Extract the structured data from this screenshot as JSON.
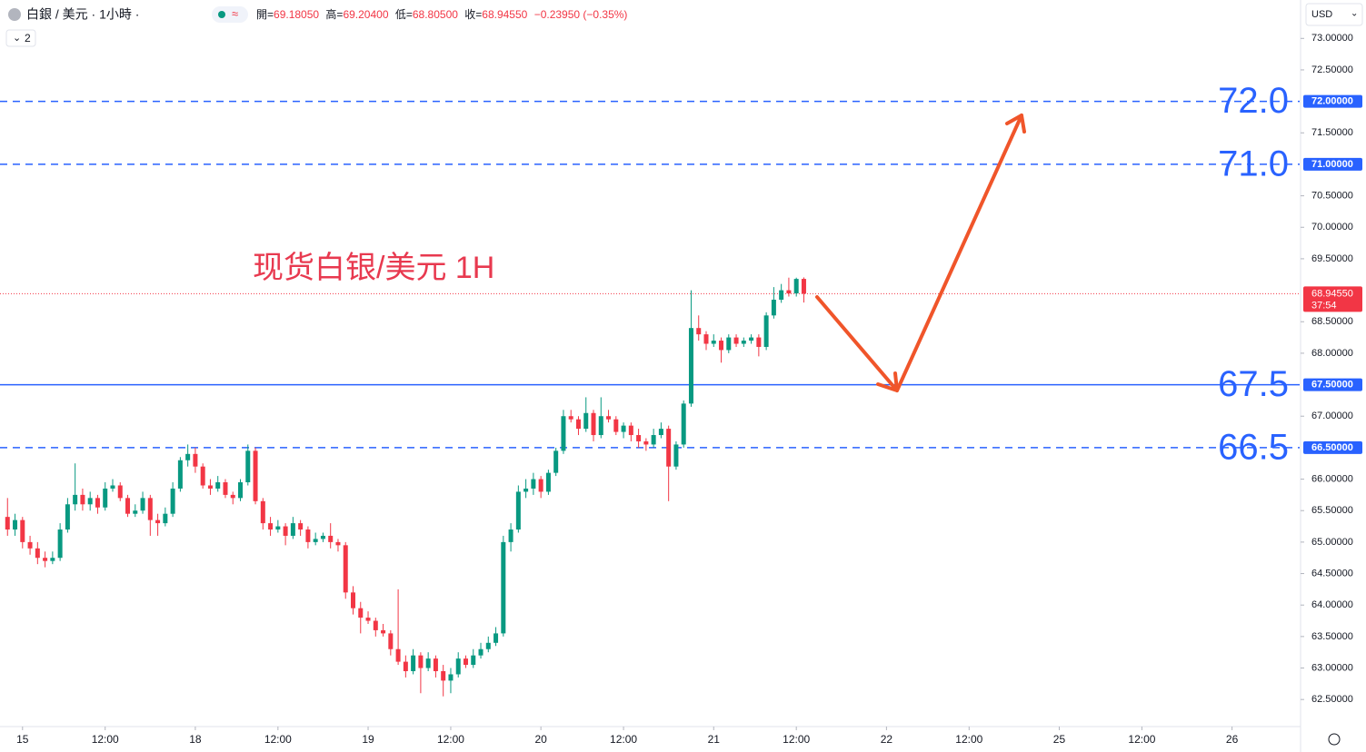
{
  "header": {
    "symbol": "白銀 / 美元 · 1小時 ·",
    "stats": [
      {
        "label": "開=",
        "value": "69.18050"
      },
      {
        "label": "高=",
        "value": "69.20400"
      },
      {
        "label": "低=",
        "value": "68.80500"
      },
      {
        "label": "收=",
        "value": "68.94550"
      }
    ],
    "change": "−0.23950 (−0.35%)",
    "indicators": "2",
    "currency": "USD"
  },
  "chart_data": {
    "type": "candlestick",
    "annotation": "现货白银/美元 1H",
    "up_color": "#089981",
    "down_color": "#f23645",
    "x": [
      -2,
      -1,
      0,
      1,
      2,
      3,
      4,
      5,
      6,
      7,
      8,
      9,
      10,
      11,
      12,
      13,
      14,
      15,
      16,
      17,
      18,
      19,
      20,
      21,
      22,
      23,
      24,
      25,
      26,
      27,
      28,
      29,
      30,
      31,
      32,
      33,
      34,
      35,
      36,
      37,
      38,
      39,
      40,
      41,
      42,
      43,
      44,
      45,
      46,
      47,
      48,
      49,
      50,
      51,
      52,
      53,
      54,
      55,
      56,
      57,
      58,
      59,
      60,
      61,
      62,
      63,
      64,
      65,
      66,
      67,
      68,
      69,
      70,
      71,
      72,
      73,
      74,
      75,
      76,
      77,
      78,
      79,
      80,
      81,
      82,
      83,
      84,
      85,
      86,
      87,
      88,
      89,
      90,
      91,
      92,
      93,
      94,
      95,
      96,
      97,
      98,
      99,
      100,
      101,
      102,
      103,
      104
    ],
    "ohlc": [
      [
        65.4,
        65.7,
        65.1,
        65.2
      ],
      [
        65.2,
        65.45,
        65.1,
        65.35
      ],
      [
        65.35,
        65.4,
        64.9,
        65.0
      ],
      [
        65.0,
        65.1,
        64.8,
        64.9
      ],
      [
        64.9,
        65.0,
        64.65,
        64.75
      ],
      [
        64.75,
        64.85,
        64.6,
        64.7
      ],
      [
        64.7,
        64.85,
        64.65,
        64.75
      ],
      [
        64.75,
        65.3,
        64.7,
        65.2
      ],
      [
        65.2,
        65.7,
        65.15,
        65.6
      ],
      [
        65.6,
        66.25,
        65.5,
        65.75
      ],
      [
        65.75,
        65.85,
        65.5,
        65.6
      ],
      [
        65.6,
        65.8,
        65.5,
        65.7
      ],
      [
        65.7,
        65.75,
        65.45,
        65.55
      ],
      [
        65.55,
        65.95,
        65.5,
        65.85
      ],
      [
        65.85,
        66.0,
        65.8,
        65.9
      ],
      [
        65.9,
        65.95,
        65.65,
        65.7
      ],
      [
        65.7,
        65.75,
        65.4,
        65.45
      ],
      [
        65.45,
        65.6,
        65.4,
        65.5
      ],
      [
        65.5,
        65.8,
        65.45,
        65.7
      ],
      [
        65.7,
        65.75,
        65.1,
        65.35
      ],
      [
        65.35,
        65.45,
        65.1,
        65.3
      ],
      [
        65.3,
        65.55,
        65.25,
        65.45
      ],
      [
        65.45,
        65.95,
        65.4,
        65.85
      ],
      [
        65.85,
        66.35,
        65.8,
        66.3
      ],
      [
        66.3,
        66.55,
        66.2,
        66.4
      ],
      [
        66.4,
        66.5,
        66.1,
        66.2
      ],
      [
        66.2,
        66.25,
        65.85,
        65.9
      ],
      [
        65.9,
        66.0,
        65.75,
        65.85
      ],
      [
        65.85,
        66.05,
        65.8,
        65.95
      ],
      [
        65.95,
        66.0,
        65.7,
        65.75
      ],
      [
        65.75,
        65.8,
        65.6,
        65.7
      ],
      [
        65.7,
        66.0,
        65.65,
        65.95
      ],
      [
        65.95,
        66.55,
        65.9,
        66.45
      ],
      [
        66.45,
        66.5,
        65.6,
        65.65
      ],
      [
        65.65,
        65.7,
        65.2,
        65.3
      ],
      [
        65.3,
        65.4,
        65.1,
        65.2
      ],
      [
        65.2,
        65.35,
        65.15,
        65.25
      ],
      [
        65.25,
        65.3,
        64.95,
        65.1
      ],
      [
        65.1,
        65.4,
        65.05,
        65.3
      ],
      [
        65.3,
        65.35,
        65.1,
        65.2
      ],
      [
        65.2,
        65.25,
        64.9,
        65.0
      ],
      [
        65.0,
        65.15,
        64.95,
        65.05
      ],
      [
        65.05,
        65.15,
        65.0,
        65.1
      ],
      [
        65.1,
        65.3,
        64.9,
        65.0
      ],
      [
        65.0,
        65.05,
        64.85,
        64.95
      ],
      [
        64.95,
        65.0,
        64.1,
        64.2
      ],
      [
        64.2,
        64.3,
        63.85,
        63.95
      ],
      [
        63.95,
        64.05,
        63.55,
        63.8
      ],
      [
        63.8,
        63.9,
        63.7,
        63.75
      ],
      [
        63.75,
        63.8,
        63.5,
        63.6
      ],
      [
        63.6,
        63.7,
        63.5,
        63.55
      ],
      [
        63.55,
        63.6,
        63.2,
        63.3
      ],
      [
        63.3,
        64.25,
        63.05,
        63.1
      ],
      [
        63.1,
        63.2,
        62.85,
        62.95
      ],
      [
        62.95,
        63.3,
        62.9,
        63.2
      ],
      [
        63.2,
        63.25,
        62.6,
        63.0
      ],
      [
        63.0,
        63.25,
        62.95,
        63.15
      ],
      [
        63.15,
        63.2,
        62.85,
        62.95
      ],
      [
        62.95,
        63.05,
        62.55,
        62.8
      ],
      [
        62.8,
        63.0,
        62.6,
        62.9
      ],
      [
        62.9,
        63.25,
        62.85,
        63.15
      ],
      [
        63.15,
        63.2,
        63.0,
        63.05
      ],
      [
        63.05,
        63.3,
        63.0,
        63.2
      ],
      [
        63.2,
        63.4,
        63.15,
        63.3
      ],
      [
        63.3,
        63.5,
        63.25,
        63.4
      ],
      [
        63.4,
        63.65,
        63.35,
        63.55
      ],
      [
        63.55,
        65.1,
        63.5,
        65.0
      ],
      [
        65.0,
        65.3,
        64.85,
        65.2
      ],
      [
        65.2,
        65.9,
        65.15,
        65.8
      ],
      [
        65.8,
        66.0,
        65.7,
        65.85
      ],
      [
        65.85,
        66.1,
        65.75,
        66.0
      ],
      [
        66.0,
        66.05,
        65.7,
        65.8
      ],
      [
        65.8,
        66.15,
        65.75,
        66.1
      ],
      [
        66.1,
        66.5,
        66.05,
        66.45
      ],
      [
        66.45,
        67.1,
        66.4,
        67.0
      ],
      [
        67.0,
        67.1,
        66.9,
        66.95
      ],
      [
        66.95,
        67.0,
        66.7,
        66.8
      ],
      [
        66.8,
        67.3,
        66.75,
        67.05
      ],
      [
        67.05,
        67.1,
        66.6,
        66.7
      ],
      [
        66.7,
        67.3,
        66.65,
        67.0
      ],
      [
        67.0,
        67.1,
        66.9,
        66.95
      ],
      [
        66.95,
        67.0,
        66.7,
        66.75
      ],
      [
        66.75,
        66.9,
        66.65,
        66.85
      ],
      [
        66.85,
        66.9,
        66.6,
        66.7
      ],
      [
        66.7,
        66.8,
        66.5,
        66.6
      ],
      [
        66.6,
        66.65,
        66.45,
        66.55
      ],
      [
        66.55,
        66.8,
        66.5,
        66.7
      ],
      [
        66.7,
        66.9,
        66.65,
        66.8
      ],
      [
        66.8,
        66.85,
        65.65,
        66.2
      ],
      [
        66.2,
        66.6,
        66.15,
        66.55
      ],
      [
        66.55,
        67.25,
        66.5,
        67.2
      ],
      [
        67.2,
        69.0,
        67.15,
        68.4
      ],
      [
        68.4,
        68.6,
        68.2,
        68.3
      ],
      [
        68.3,
        68.35,
        68.05,
        68.15
      ],
      [
        68.15,
        68.3,
        68.1,
        68.2
      ],
      [
        68.2,
        68.25,
        67.85,
        68.05
      ],
      [
        68.05,
        68.3,
        68.0,
        68.25
      ],
      [
        68.25,
        68.3,
        68.1,
        68.15
      ],
      [
        68.15,
        68.25,
        68.1,
        68.2
      ],
      [
        68.2,
        68.3,
        68.15,
        68.25
      ],
      [
        68.25,
        68.3,
        67.95,
        68.1
      ],
      [
        68.1,
        68.65,
        68.05,
        68.6
      ],
      [
        68.6,
        69.05,
        68.55,
        68.85
      ],
      [
        68.85,
        69.1,
        68.8,
        69.0
      ],
      [
        69.0,
        69.2,
        68.9,
        68.95
      ],
      [
        68.95,
        69.2,
        68.9,
        69.18
      ],
      [
        69.1805,
        69.204,
        68.805,
        68.9455
      ]
    ],
    "xlim": [
      -3,
      170
    ],
    "xticks": [
      {
        "value": 0,
        "label": "15"
      },
      {
        "value": 11,
        "label": "12:00"
      },
      {
        "value": 23,
        "label": "18"
      },
      {
        "value": 34,
        "label": "12:00"
      },
      {
        "value": 46,
        "label": "19"
      },
      {
        "value": 57,
        "label": "12:00"
      },
      {
        "value": 69,
        "label": "20"
      },
      {
        "value": 80,
        "label": "12:00"
      },
      {
        "value": 92,
        "label": "21"
      },
      {
        "value": 103,
        "label": "12:00"
      },
      {
        "value": 115,
        "label": "22"
      },
      {
        "value": 126,
        "label": "12:00"
      },
      {
        "value": 138,
        "label": "25"
      },
      {
        "value": 149,
        "label": "12:00"
      },
      {
        "value": 161,
        "label": "26"
      }
    ],
    "ylim": [
      62.07,
      73.61
    ],
    "yticks": [
      {
        "value": 73,
        "label": "73.00000"
      },
      {
        "value": 72.5,
        "label": "72.50000"
      },
      {
        "value": 71.5,
        "label": "71.50000"
      },
      {
        "value": 70.5,
        "label": "70.50000"
      },
      {
        "value": 70,
        "label": "70.00000"
      },
      {
        "value": 69.5,
        "label": "69.50000"
      },
      {
        "value": 68.5,
        "label": "68.50000"
      },
      {
        "value": 68,
        "label": "68.00000"
      },
      {
        "value": 67,
        "label": "67.00000"
      },
      {
        "value": 66,
        "label": "66.00000"
      },
      {
        "value": 65.5,
        "label": "65.50000"
      },
      {
        "value": 65,
        "label": "65.00000"
      },
      {
        "value": 64.5,
        "label": "64.50000"
      },
      {
        "value": 64,
        "label": "64.00000"
      },
      {
        "value": 63.5,
        "label": "63.50000"
      },
      {
        "value": 63,
        "label": "63.00000"
      },
      {
        "value": 62.5,
        "label": "62.50000"
      }
    ],
    "levels": [
      {
        "value": 72,
        "label": "72.0",
        "axis_label": "72.00000",
        "style": "dashed"
      },
      {
        "value": 71,
        "label": "71.0",
        "axis_label": "71.00000",
        "style": "dashed"
      },
      {
        "value": 67.5,
        "label": "67.5",
        "axis_label": "67.50000",
        "style": "solid"
      },
      {
        "value": 66.5,
        "label": "66.5",
        "axis_label": "66.50000",
        "style": "dashed"
      }
    ],
    "level_color": "#2962ff",
    "last_price": {
      "value": 68.9455,
      "label": "68.94550",
      "countdown": "37:54"
    }
  }
}
